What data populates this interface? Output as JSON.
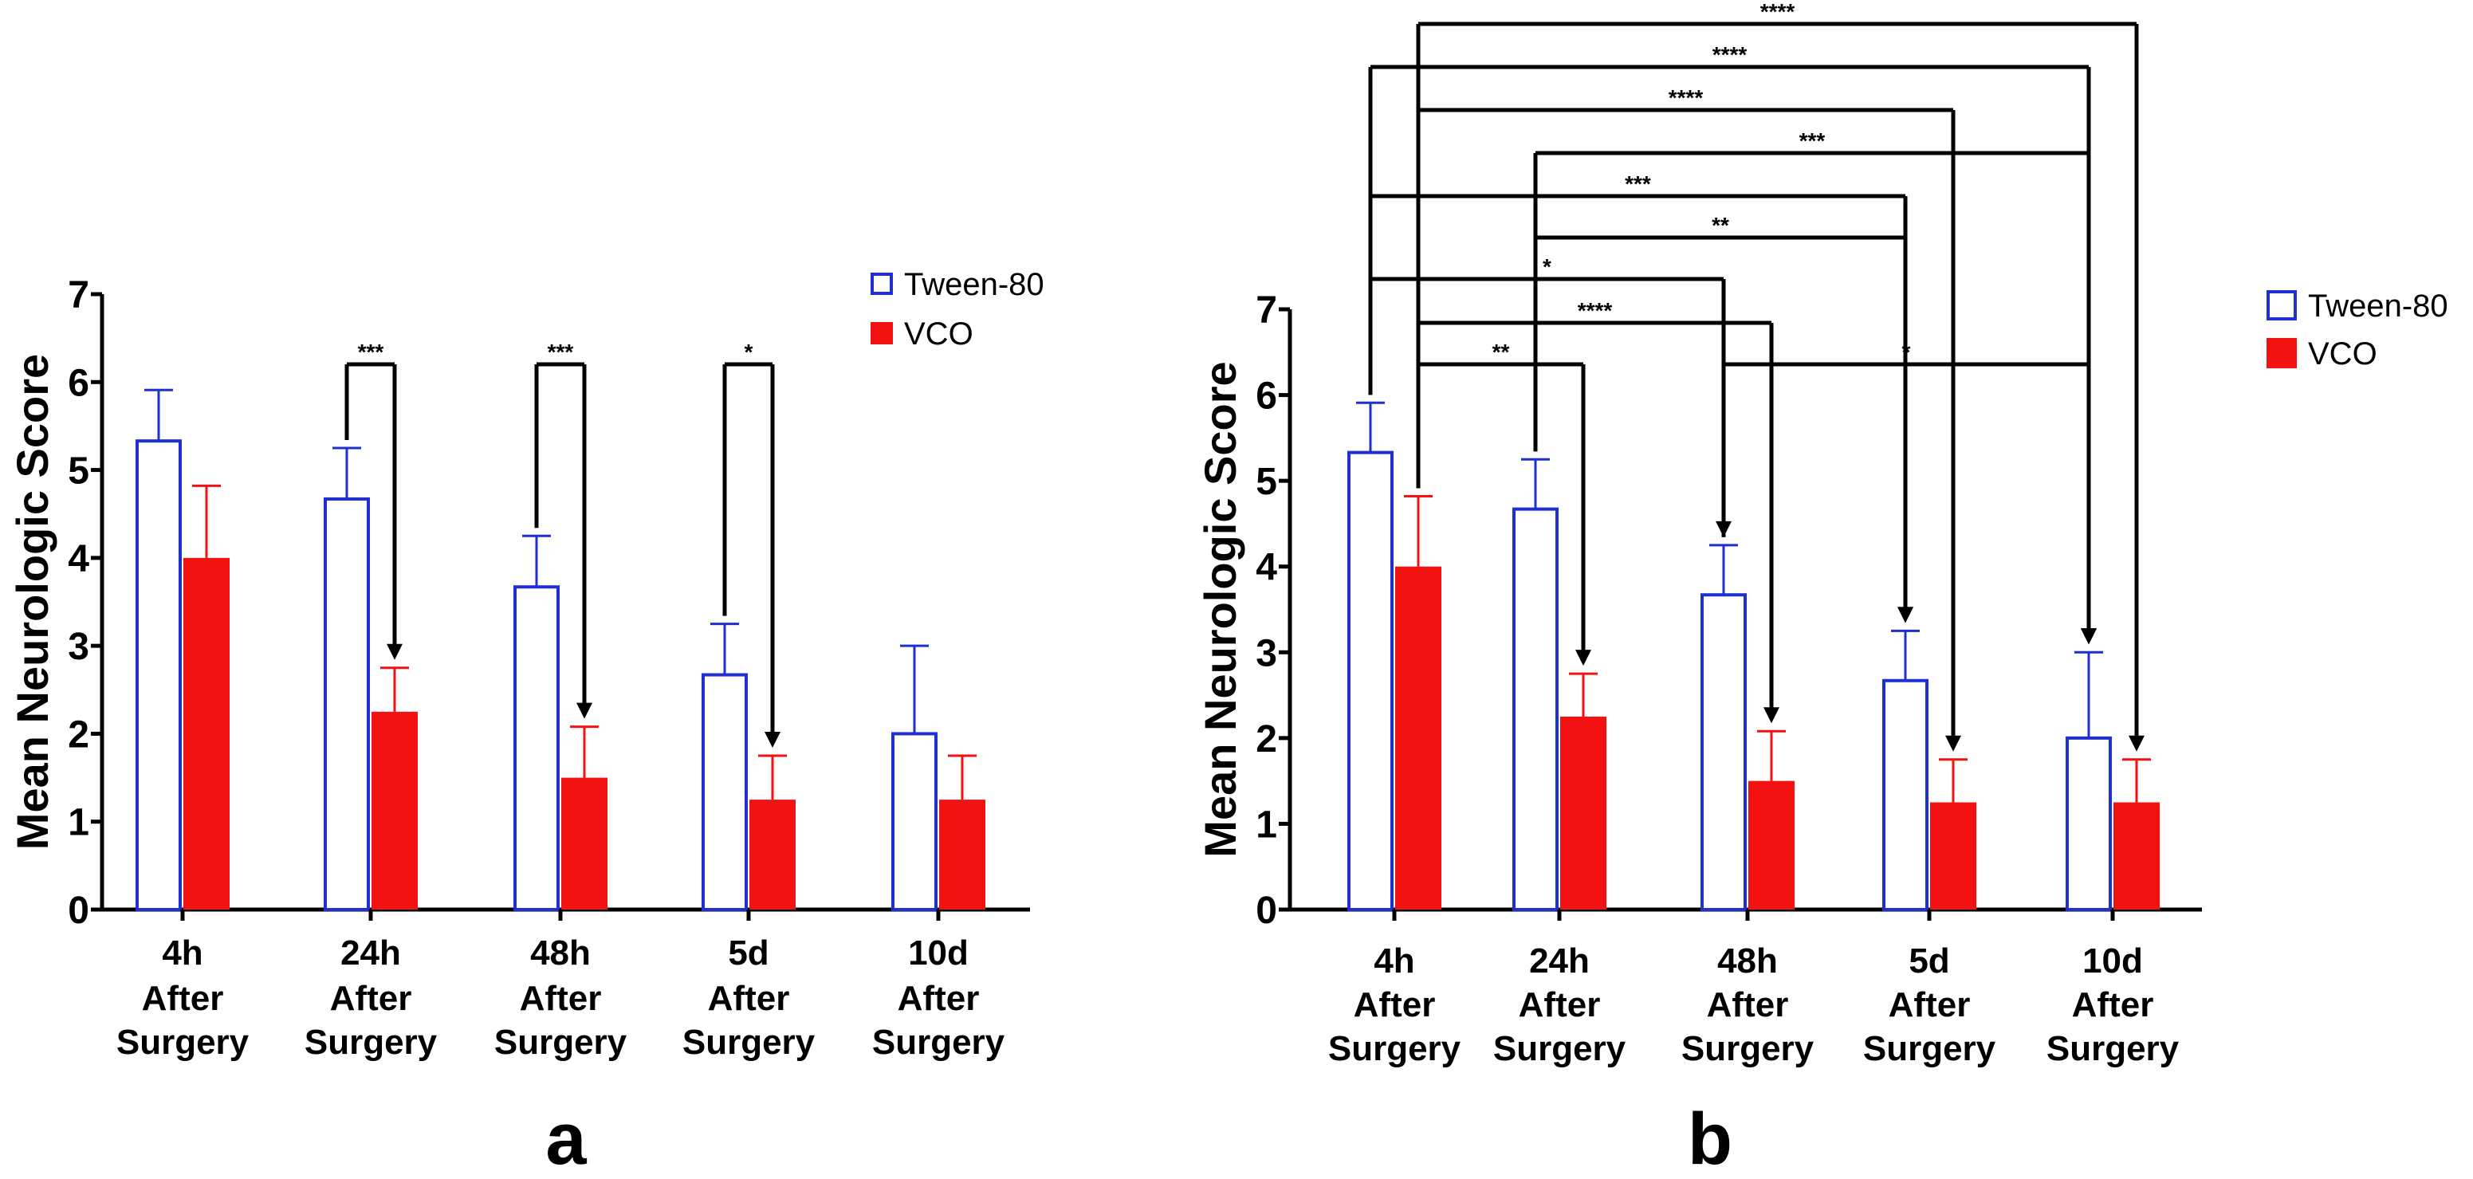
{
  "figure": {
    "panel_a_label": "a",
    "panel_b_label": "b"
  },
  "colors": {
    "tween": "#1f2fd0",
    "vco": "#f21212",
    "axis": "#000000"
  },
  "chart_data": [
    {
      "panel": "a",
      "type": "bar",
      "title": "",
      "xlabel": "",
      "ylabel": "Mean Neurologic Score",
      "ylim": [
        0,
        7
      ],
      "yticks": [
        "0",
        "1",
        "2",
        "3",
        "4",
        "5",
        "6",
        "7"
      ],
      "categories": [
        [
          "4h",
          "After",
          "Surgery"
        ],
        [
          "24h",
          "After",
          "Surgery"
        ],
        [
          "48h",
          "After",
          "Surgery"
        ],
        [
          "5d",
          "After",
          "Surgery"
        ],
        [
          "10d",
          "After",
          "Surgery"
        ]
      ],
      "series": [
        {
          "name": "Tween-80",
          "key": "tween",
          "style": "outline",
          "values": [
            5.33,
            4.67,
            3.67,
            2.67,
            2.0
          ],
          "errors": [
            0.58,
            0.58,
            0.58,
            0.58,
            1.0
          ]
        },
        {
          "name": "VCO",
          "key": "vco",
          "style": "filled",
          "values": [
            4.0,
            2.25,
            1.5,
            1.25,
            1.25
          ],
          "errors": [
            0.82,
            0.5,
            0.58,
            0.5,
            0.5
          ]
        }
      ],
      "legend": [
        "Tween-80",
        "VCO"
      ],
      "legend_position": "top-right",
      "significance": [
        {
          "from": {
            "group": 1,
            "series": 0
          },
          "to": {
            "group": 1,
            "series": 1
          },
          "label": "***"
        },
        {
          "from": {
            "group": 2,
            "series": 0
          },
          "to": {
            "group": 2,
            "series": 1
          },
          "label": "***"
        },
        {
          "from": {
            "group": 3,
            "series": 0
          },
          "to": {
            "group": 3,
            "series": 1
          },
          "label": "*"
        }
      ]
    },
    {
      "panel": "b",
      "type": "bar",
      "title": "",
      "xlabel": "",
      "ylabel": "Mean Neurologic Score",
      "ylim": [
        0,
        7
      ],
      "yticks": [
        "0",
        "1",
        "2",
        "3",
        "4",
        "5",
        "6",
        "7"
      ],
      "categories": [
        [
          "4h",
          "After",
          "Surgery"
        ],
        [
          "24h",
          "After",
          "Surgery"
        ],
        [
          "48h",
          "After",
          "Surgery"
        ],
        [
          "5d",
          "After",
          "Surgery"
        ],
        [
          "10d",
          "After",
          "Surgery"
        ]
      ],
      "series": [
        {
          "name": "Tween-80",
          "key": "tween",
          "style": "outline",
          "values": [
            5.33,
            4.67,
            3.67,
            2.67,
            2.0
          ],
          "errors": [
            0.58,
            0.58,
            0.58,
            0.58,
            1.0
          ]
        },
        {
          "name": "VCO",
          "key": "vco",
          "style": "filled",
          "values": [
            4.0,
            2.25,
            1.5,
            1.25,
            1.25
          ],
          "errors": [
            0.82,
            0.5,
            0.58,
            0.5,
            0.5
          ]
        }
      ],
      "legend": [
        "Tween-80",
        "VCO"
      ],
      "legend_position": "right",
      "significance": [
        {
          "from": {
            "group": 0,
            "series": 1
          },
          "to": {
            "group": 4,
            "series": 1
          },
          "label": "****"
        },
        {
          "from": {
            "group": 0,
            "series": 0
          },
          "to": {
            "group": 4,
            "series": 0
          },
          "label": "****"
        },
        {
          "from": {
            "group": 0,
            "series": 1
          },
          "to": {
            "group": 3,
            "series": 1
          },
          "label": "****"
        },
        {
          "from": {
            "group": 1,
            "series": 0
          },
          "to": {
            "group": 4,
            "series": 0
          },
          "label": "***"
        },
        {
          "from": {
            "group": 0,
            "series": 0
          },
          "to": {
            "group": 3,
            "series": 0
          },
          "label": "***"
        },
        {
          "from": {
            "group": 1,
            "series": 0
          },
          "to": {
            "group": 3,
            "series": 0
          },
          "label": "**"
        },
        {
          "from": {
            "group": 0,
            "series": 0
          },
          "to": {
            "group": 2,
            "series": 0
          },
          "label": "*"
        },
        {
          "from": {
            "group": 0,
            "series": 1
          },
          "to": {
            "group": 2,
            "series": 1
          },
          "label": "****"
        },
        {
          "from": {
            "group": 0,
            "series": 1
          },
          "to": {
            "group": 1,
            "series": 1
          },
          "label": "**"
        },
        {
          "from": {
            "group": 2,
            "series": 0
          },
          "to": {
            "group": 4,
            "series": 0
          },
          "label": "*"
        }
      ]
    }
  ]
}
